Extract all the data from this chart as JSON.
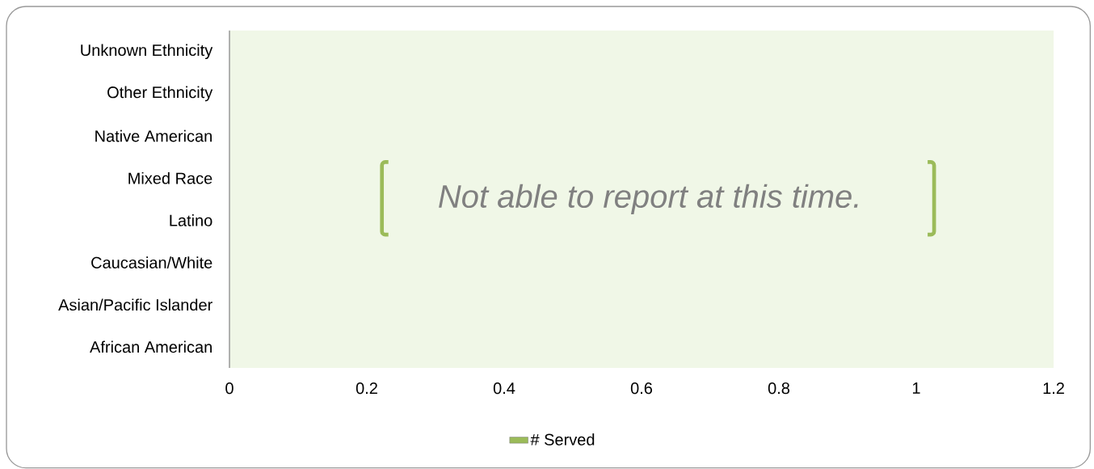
{
  "chart_data": {
    "type": "bar",
    "orientation": "horizontal",
    "categories": [
      "Unknown Ethnicity",
      "Other Ethnicity",
      "Native American",
      "Mixed Race",
      "Latino",
      "Caucasian/White",
      "Asian/Pacific Islander",
      "African American"
    ],
    "series": [
      {
        "name": "# Served",
        "color": "#9bbb59",
        "values": [
          null,
          null,
          null,
          null,
          null,
          null,
          null,
          null
        ]
      }
    ],
    "xlim": [
      0,
      1.2
    ],
    "xticks": [
      0,
      0.2,
      0.4,
      0.6,
      0.8,
      1,
      1.2
    ],
    "annotations": [
      "Not able to report at this time."
    ],
    "legend": "bottom"
  }
}
